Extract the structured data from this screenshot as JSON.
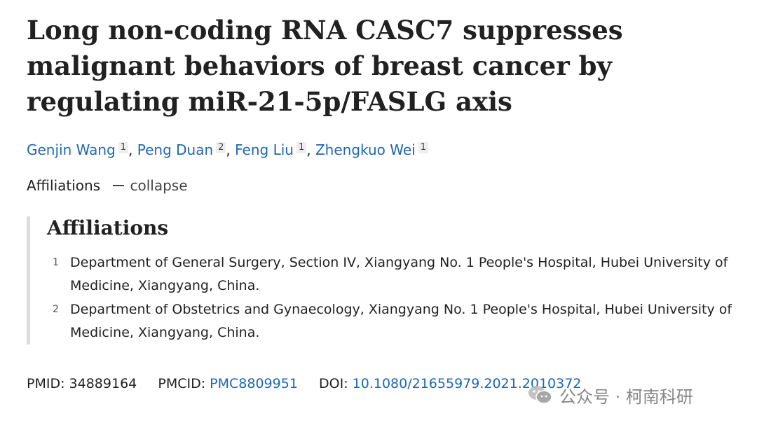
{
  "article": {
    "title": "Long non-coding RNA CASC7 suppresses malignant behaviors of breast cancer by regulating miR-21-5p/FASLG axis"
  },
  "authors": [
    {
      "name": "Genjin Wang",
      "aff": "1"
    },
    {
      "name": "Peng Duan",
      "aff": "2"
    },
    {
      "name": "Feng Liu",
      "aff": "1"
    },
    {
      "name": "Zhengkuo Wei",
      "aff": "1"
    }
  ],
  "affiliations_toggle": {
    "label": "Affiliations",
    "action": "collapse"
  },
  "affiliations": {
    "heading": "Affiliations",
    "items": [
      {
        "num": "1",
        "text": "Department of General Surgery, Section IV, Xiangyang No. 1 People's Hospital, Hubei University of Medicine, Xiangyang, China."
      },
      {
        "num": "2",
        "text": "Department of Obstetrics and Gynaecology, Xiangyang No. 1 People's Hospital, Hubei University of Medicine, Xiangyang, China."
      }
    ]
  },
  "identifiers": {
    "pmid_label": "PMID:",
    "pmid": "34889164",
    "pmcid_label": "PMCID:",
    "pmcid": "PMC8809951",
    "doi_label": "DOI:",
    "doi": "10.1080/21655979.2021.2010372"
  },
  "watermark": {
    "text": "公众号 · 柯南科研",
    "icon": "wechat-icon"
  },
  "colors": {
    "link": "#2067b0",
    "text": "#212121",
    "panel_border": "#dddddd"
  }
}
